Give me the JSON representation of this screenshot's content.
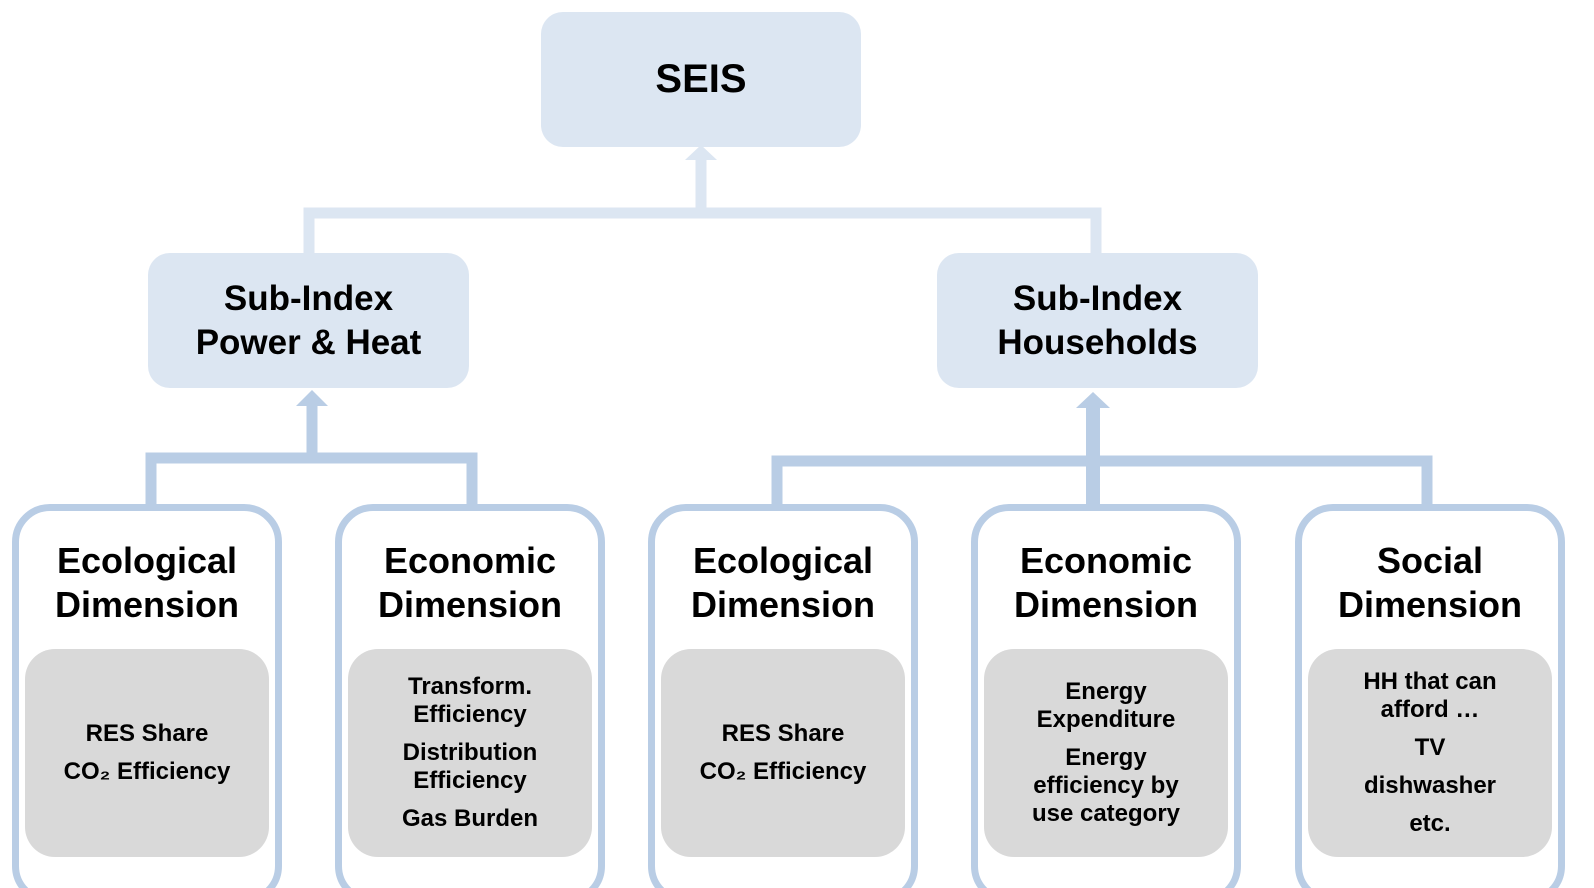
{
  "root": {
    "label": "SEIS"
  },
  "sub_indices": [
    {
      "lines": [
        "Sub-Index",
        "Power & Heat"
      ]
    },
    {
      "lines": [
        "Sub-Index",
        "Households"
      ]
    }
  ],
  "dimensions": [
    {
      "lines": [
        "Ecological",
        "Dimension"
      ],
      "items": [
        [
          "RES Share"
        ],
        [
          "CO₂ Efficiency"
        ]
      ]
    },
    {
      "lines": [
        "Economic",
        "Dimension"
      ],
      "items": [
        [
          "Transform.",
          "Efficiency"
        ],
        [
          "Distribution",
          "Efficiency"
        ],
        [
          "Gas Burden"
        ]
      ]
    },
    {
      "lines": [
        "Ecological",
        "Dimension"
      ],
      "items": [
        [
          "RES Share"
        ],
        [
          "CO₂ Efficiency"
        ]
      ]
    },
    {
      "lines": [
        "Economic",
        "Dimension"
      ],
      "items": [
        [
          "Energy",
          "Expenditure"
        ],
        [
          "Energy",
          "efficiency by",
          "use category"
        ]
      ]
    },
    {
      "lines": [
        "Social",
        "Dimension"
      ],
      "items": [
        [
          "HH that can",
          "afford …"
        ],
        [
          "TV"
        ],
        [
          "dishwasher"
        ],
        [
          "etc."
        ]
      ]
    }
  ]
}
